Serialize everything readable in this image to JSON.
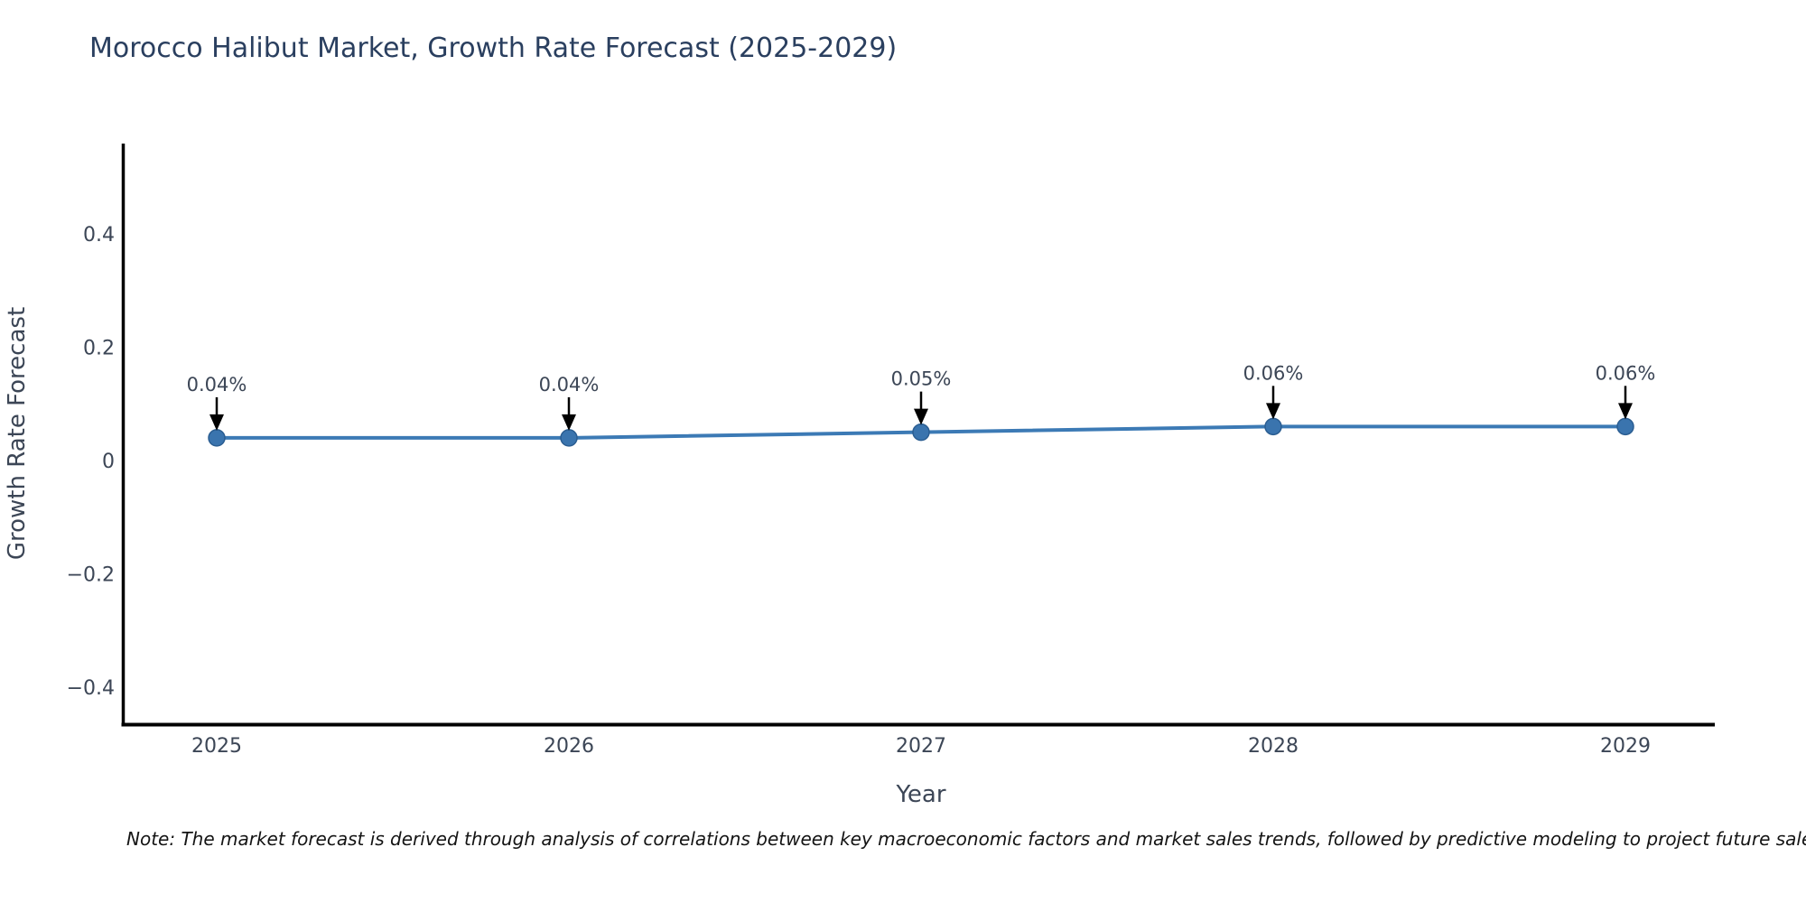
{
  "page": {
    "background": "#ffffff"
  },
  "note": "Note: The market forecast is derived through analysis of correlations between key macroeconomic factors and market sales trends, followed by predictive modeling to project future sales",
  "chart_data": {
    "type": "line",
    "title": "Morocco Halibut Market, Growth Rate Forecast (2025-2029)",
    "xlabel": "Year",
    "ylabel": "Growth Rate Forecast",
    "x": [
      2025,
      2026,
      2027,
      2028,
      2029
    ],
    "series": [
      {
        "name": "Growth Rate Forecast",
        "values": [
          0.04,
          0.04,
          0.05,
          0.06,
          0.06
        ],
        "point_labels": [
          "0.04%",
          "0.04%",
          "0.05%",
          "0.06%",
          "0.06%"
        ]
      }
    ],
    "xticks": {
      "values": [
        2025,
        2026,
        2027,
        2028,
        2029
      ],
      "labels": [
        "2025",
        "2026",
        "2027",
        "2028",
        "2029"
      ]
    },
    "yticks": {
      "values": [
        0.4,
        0.2,
        0,
        -0.2,
        -0.4
      ],
      "labels": [
        "0.4",
        "0.2",
        "0",
        "−0.2",
        "−0.4"
      ]
    },
    "xlim": [
      2024.73,
      2029.25
    ],
    "ylim": [
      -0.47,
      0.56
    ],
    "grid": false,
    "legend": false,
    "annotation_style": "value label above each point with a black arrow pointing down at the marker",
    "colors": {
      "line": "#3c7ab5",
      "marker": "#3a74ae",
      "marker_edge": "#2b5e92",
      "axis": "#000000",
      "arrow": "#000000",
      "title": "#2a3f5f",
      "tick_text": "#3c4656",
      "axis_title_text": "#3c4656",
      "annotation_text": "#3c4656",
      "note_text": "#141414"
    }
  }
}
